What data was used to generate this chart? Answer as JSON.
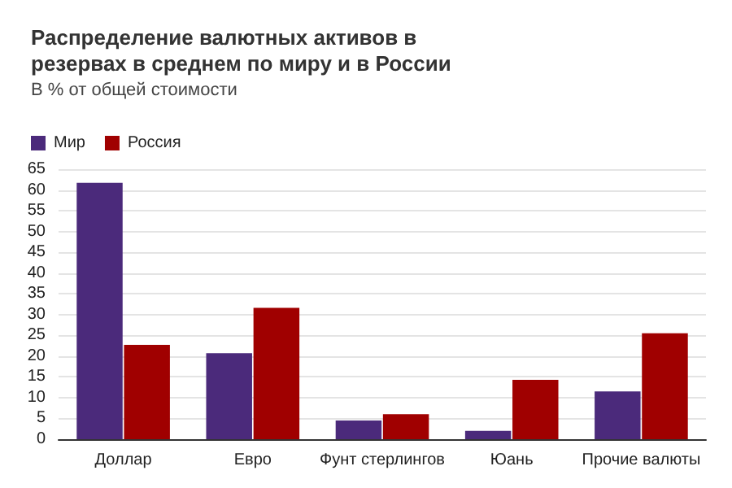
{
  "chart_data": {
    "type": "bar",
    "title": "Распределение валютных активов в резервах в среднем по миру и в России",
    "subtitle": "В % от общей стоимости",
    "categories": [
      "Доллар",
      "Евро",
      "Фунт стерлингов",
      "Юань",
      "Прочие валюты"
    ],
    "series": [
      {
        "name": "Мир",
        "color": "#4b2a7b",
        "values": [
          61.7,
          20.7,
          4.5,
          2,
          11.5
        ]
      },
      {
        "name": "Россия",
        "color": "#a00000",
        "values": [
          22.7,
          31.6,
          6,
          14.3,
          25.5
        ]
      }
    ],
    "ylim": [
      0,
      65
    ],
    "yticks": [
      0,
      5,
      10,
      15,
      20,
      25,
      30,
      35,
      40,
      45,
      50,
      55,
      60,
      65
    ],
    "grid": "y",
    "legend": "top left"
  }
}
